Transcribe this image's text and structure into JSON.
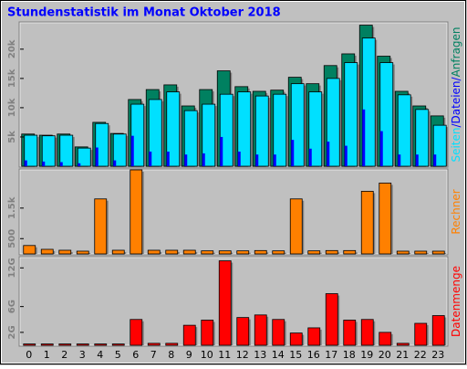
{
  "chart_data": {
    "type": "bar",
    "title": "Stundenstatistik im Monat Oktober 2018",
    "categories": [
      "0",
      "1",
      "2",
      "3",
      "4",
      "5",
      "6",
      "7",
      "8",
      "9",
      "10",
      "11",
      "12",
      "13",
      "14",
      "15",
      "16",
      "17",
      "18",
      "19",
      "20",
      "21",
      "22",
      "23"
    ],
    "legend_separator": "/",
    "panels": [
      {
        "ylim": [
          0,
          24500
        ],
        "yticks": [
          {
            "value": 5000,
            "label": "5k"
          },
          {
            "value": 10000,
            "label": "10k"
          },
          {
            "value": 15000,
            "label": "15k"
          },
          {
            "value": 20000,
            "label": "20k"
          }
        ],
        "series": [
          {
            "name": "Seiten",
            "color": "#00e0ff",
            "values": [
              5300,
              5200,
              5300,
              3100,
              7300,
              5500,
              10600,
              11400,
              12700,
              9500,
              10600,
              12300,
              12700,
              12000,
              12300,
              14100,
              12700,
              15000,
              17700,
              21900,
              17700,
              12200,
              9700,
              7000
            ]
          },
          {
            "name": "Dateien",
            "color": "#0000ff",
            "values": [
              1000,
              800,
              700,
              500,
              3200,
              1000,
              5200,
              2500,
              2500,
              2000,
              2200,
              5000,
              2500,
              2000,
              2000,
              4500,
              3000,
              4200,
              3500,
              9700,
              6000,
              2000,
              2000,
              2000
            ]
          },
          {
            "name": "Anfragen",
            "color": "#008060",
            "values": [
              5500,
              5300,
              5500,
              3300,
              7500,
              5600,
              11400,
              13100,
              13900,
              10300,
              13100,
              16300,
              13600,
              12800,
              13000,
              15200,
              14100,
              17200,
              19200,
              24100,
              18800,
              12800,
              10300,
              8600
            ]
          }
        ]
      },
      {
        "ylim": [
          0,
          2750
        ],
        "yticks": [
          500,
          {
            "value": 1500,
            "label": "1.5k"
          }
        ],
        "series": [
          {
            "name": "Rechner",
            "color": "#ff8000",
            "values": [
              275,
              150,
              120,
              90,
              1800,
              120,
              2750,
              120,
              120,
              120,
              100,
              100,
              100,
              110,
              100,
              1800,
              100,
              110,
              110,
              2050,
              2320,
              90,
              90,
              90
            ]
          }
        ]
      },
      {
        "ylim": [
          0,
          13.6
        ],
        "yticks": [
          {
            "value": 2,
            "label": "2G"
          },
          {
            "value": 6,
            "label": "6G"
          },
          {
            "value": 12,
            "label": "12G"
          }
        ],
        "series": [
          {
            "name": "Datenmenge",
            "color": "#ff0000",
            "values": [
              0.2,
              0.2,
              0.2,
              0.2,
              0.2,
              0.2,
              4,
              0.3,
              0.3,
              3.1,
              3.9,
              13.1,
              4.3,
              4.7,
              4,
              1.9,
              2.7,
              8,
              3.9,
              4,
              2,
              0.3,
              3.4,
              4.6
            ]
          }
        ]
      }
    ]
  }
}
